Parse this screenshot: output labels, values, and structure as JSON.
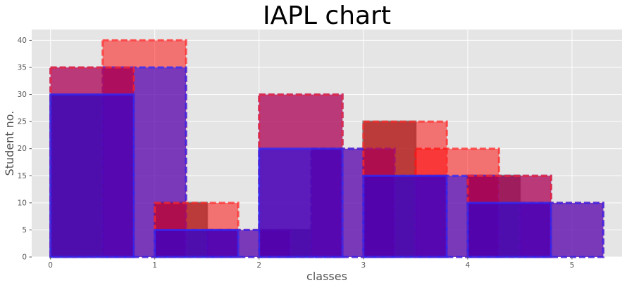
{
  "chart_data": {
    "type": "bar",
    "title": "IAPL chart",
    "xlabel": "classes",
    "ylabel": "Student no.",
    "xlim": [
      -0.18,
      5.48
    ],
    "ylim": [
      0,
      42
    ],
    "x_ticks": [
      0,
      1,
      2,
      3,
      4,
      5
    ],
    "y_ticks": [
      0,
      5,
      10,
      15,
      20,
      25,
      30,
      35,
      40
    ],
    "grid": true,
    "legend": "none",
    "series": [
      {
        "width": 0.5,
        "style": "solid",
        "fill": "#3b3b3b",
        "fill_opacity": 0.65,
        "edge": "#6a6a6a",
        "bars": [
          {
            "x": 0.0,
            "value": 30
          },
          {
            "x": 1.0,
            "value": 10
          },
          {
            "x": 2.0,
            "value": 5
          },
          {
            "x": 3.0,
            "value": 25
          },
          {
            "x": 4.0,
            "value": 15
          }
        ]
      },
      {
        "width": 0.8,
        "style": "dashed",
        "fill": "#0000ff",
        "fill_opacity": 0.5,
        "edge": "#2a2aff",
        "bars": [
          {
            "x": 0.0,
            "value": 35
          },
          {
            "x": 1.0,
            "value": 5
          },
          {
            "x": 2.0,
            "value": 30
          },
          {
            "x": 3.0,
            "value": 15
          },
          {
            "x": 4.0,
            "value": 15
          }
        ]
      },
      {
        "width": 0.8,
        "style": "dashed",
        "fill": "#ff0000",
        "fill_opacity": 0.5,
        "edge": "#ff2a2a",
        "bars": [
          {
            "x": 0.5,
            "value": 40
          },
          {
            "x": 1.5,
            "value": 5
          },
          {
            "x": 2.5,
            "value": 20
          },
          {
            "x": 3.5,
            "value": 20
          },
          {
            "x": 4.5,
            "value": 10
          }
        ]
      },
      {
        "width": 0.8,
        "style": "dashed",
        "fill": "#0000ff",
        "fill_opacity": 0.5,
        "edge": "#2a2aff",
        "bars": [
          {
            "x": 0.5,
            "value": 35
          },
          {
            "x": 1.5,
            "value": 5
          },
          {
            "x": 2.5,
            "value": 20
          },
          {
            "x": 3.5,
            "value": 15
          },
          {
            "x": 4.5,
            "value": 10
          }
        ]
      },
      {
        "width": 0.8,
        "style": "dashed",
        "fill": "#ff0000",
        "fill_opacity": 0.5,
        "edge": "#ff2a2a",
        "bars": [
          {
            "x": 0.0,
            "value": 35
          },
          {
            "x": 1.0,
            "value": 10
          },
          {
            "x": 2.0,
            "value": 30
          },
          {
            "x": 3.0,
            "value": 25
          },
          {
            "x": 4.0,
            "value": 15
          }
        ]
      },
      {
        "width": 0.8,
        "style": "solid",
        "fill": "#0000ff",
        "fill_opacity": 0.5,
        "edge": "#2a2aff",
        "bars": [
          {
            "x": 0.0,
            "value": 30
          },
          {
            "x": 1.0,
            "value": 5
          },
          {
            "x": 2.0,
            "value": 20
          },
          {
            "x": 3.0,
            "value": 15
          },
          {
            "x": 4.0,
            "value": 10
          }
        ]
      }
    ]
  }
}
